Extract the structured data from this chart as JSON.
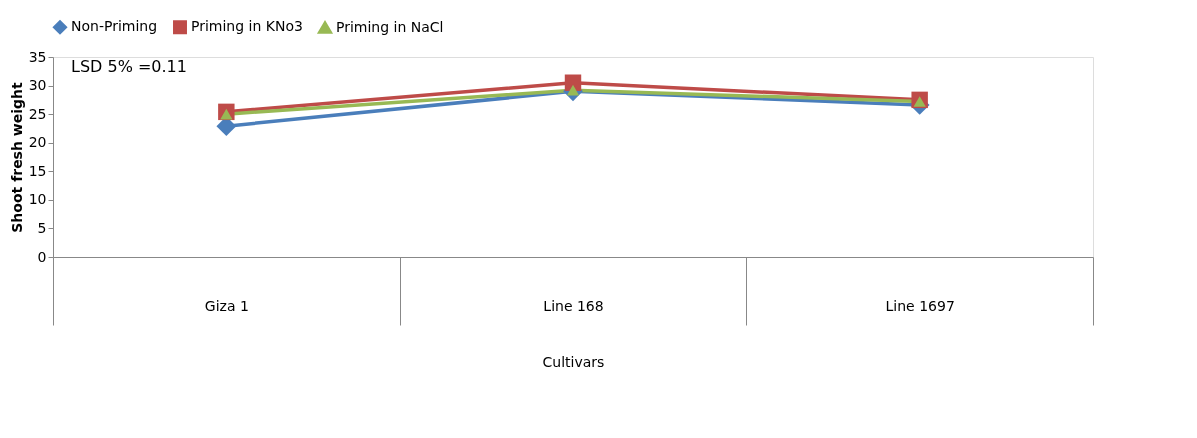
{
  "chart_data": {
    "type": "line",
    "categories": [
      "Giza 1",
      "Line 168",
      "Line 1697"
    ],
    "xlabel": "Cultivars",
    "ylabel": "Shoot fresh weight",
    "ylim": [
      0,
      35
    ],
    "yticks": [
      0,
      5,
      10,
      15,
      20,
      25,
      30,
      35
    ],
    "grid": false,
    "legend": "top",
    "annotations": [
      "LSD 5% =0.11"
    ],
    "series": [
      {
        "name": "Non-Priming",
        "color": "#4a7ebb",
        "marker": "diamond",
        "values": [
          22.9,
          29.0,
          26.6
        ]
      },
      {
        "name": "Priming in KNo3",
        "color": "#be4b48",
        "marker": "square",
        "values": [
          25.4,
          30.5,
          27.5
        ]
      },
      {
        "name": "Priming in NaCl",
        "color": "#98b954",
        "marker": "triangle",
        "values": [
          25.0,
          29.2,
          27.2
        ]
      }
    ]
  }
}
